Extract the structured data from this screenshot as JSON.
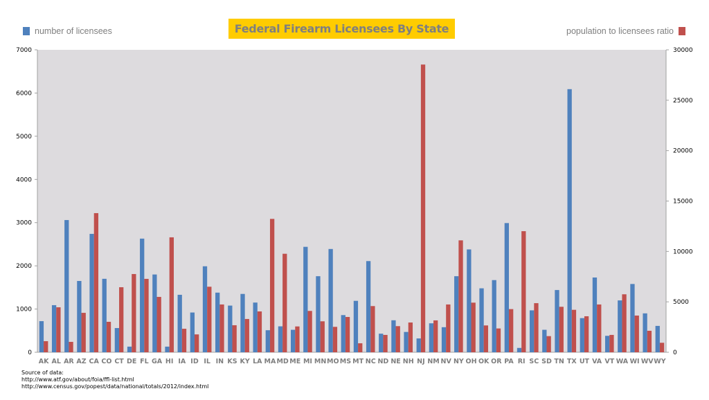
{
  "title": "Federal Firearm Licensees By State",
  "legend": {
    "left": {
      "label": "number of licensees",
      "color": "#4F81BD"
    },
    "right": {
      "label": "population to licensees ratio",
      "color": "#C0504D"
    }
  },
  "colors": {
    "title_bg": "#FFCC00",
    "title_text": "#7F7F7F",
    "plot_bg": "#DDDBDE",
    "axis": "#A0A0A0"
  },
  "source": {
    "heading": "Source of data:",
    "lines": [
      "http://www.atf.gov/about/foia/ffl-list.html",
      "http://www.census.gov/popest/data/national/totals/2012/index.html"
    ]
  },
  "chart_data": {
    "type": "bar",
    "title": "Federal Firearm Licensees By State",
    "xlabel": "",
    "ylabel": "number of licensees",
    "y2label": "population to licensees ratio",
    "ylim": [
      0,
      7000
    ],
    "y2lim": [
      0,
      30000
    ],
    "yticks": [
      0,
      1000,
      2000,
      3000,
      4000,
      5000,
      6000,
      7000
    ],
    "y2ticks": [
      0,
      5000,
      10000,
      15000,
      20000,
      25000,
      30000
    ],
    "grid": false,
    "legend_position": "top",
    "categories": [
      "AK",
      "AL",
      "AR",
      "AZ",
      "CA",
      "CO",
      "CT",
      "DE",
      "FL",
      "GA",
      "HI",
      "IA",
      "ID",
      "IL",
      "IN",
      "KS",
      "KY",
      "LA",
      "MA",
      "MD",
      "ME",
      "MI",
      "MN",
      "MO",
      "MS",
      "MT",
      "NC",
      "ND",
      "NE",
      "NH",
      "NJ",
      "NM",
      "NV",
      "NY",
      "OH",
      "OK",
      "OR",
      "PA",
      "RI",
      "SC",
      "SD",
      "TN",
      "TX",
      "UT",
      "VA",
      "VT",
      "WA",
      "WI",
      "WV",
      "WY"
    ],
    "series": [
      {
        "name": "number of licensees",
        "axis": "left",
        "color": "#4F81BD",
        "values": [
          720,
          1090,
          3060,
          1650,
          2740,
          1700,
          560,
          130,
          2630,
          1800,
          130,
          1330,
          920,
          1990,
          1380,
          1080,
          1350,
          1150,
          510,
          600,
          520,
          2440,
          1760,
          2390,
          860,
          1190,
          2110,
          430,
          740,
          470,
          320,
          670,
          580,
          1760,
          2380,
          1480,
          1670,
          2990,
          100,
          970,
          520,
          1440,
          6090,
          790,
          1730,
          380,
          1200,
          1580,
          900,
          610
        ]
      },
      {
        "name": "population to licensees ratio",
        "axis": "right",
        "color": "#C0504D",
        "values": [
          1100,
          4460,
          1030,
          3910,
          13800,
          3020,
          6450,
          7760,
          7280,
          5490,
          11400,
          2330,
          1770,
          6500,
          4740,
          2680,
          3300,
          4050,
          13230,
          9770,
          2560,
          4100,
          3070,
          2520,
          3500,
          890,
          4580,
          1720,
          2590,
          2950,
          28540,
          3160,
          4740,
          11100,
          4920,
          2660,
          2360,
          4280,
          12010,
          4870,
          1600,
          4510,
          4210,
          3570,
          4740,
          1720,
          5750,
          3640,
          2130,
          940
        ]
      }
    ]
  }
}
